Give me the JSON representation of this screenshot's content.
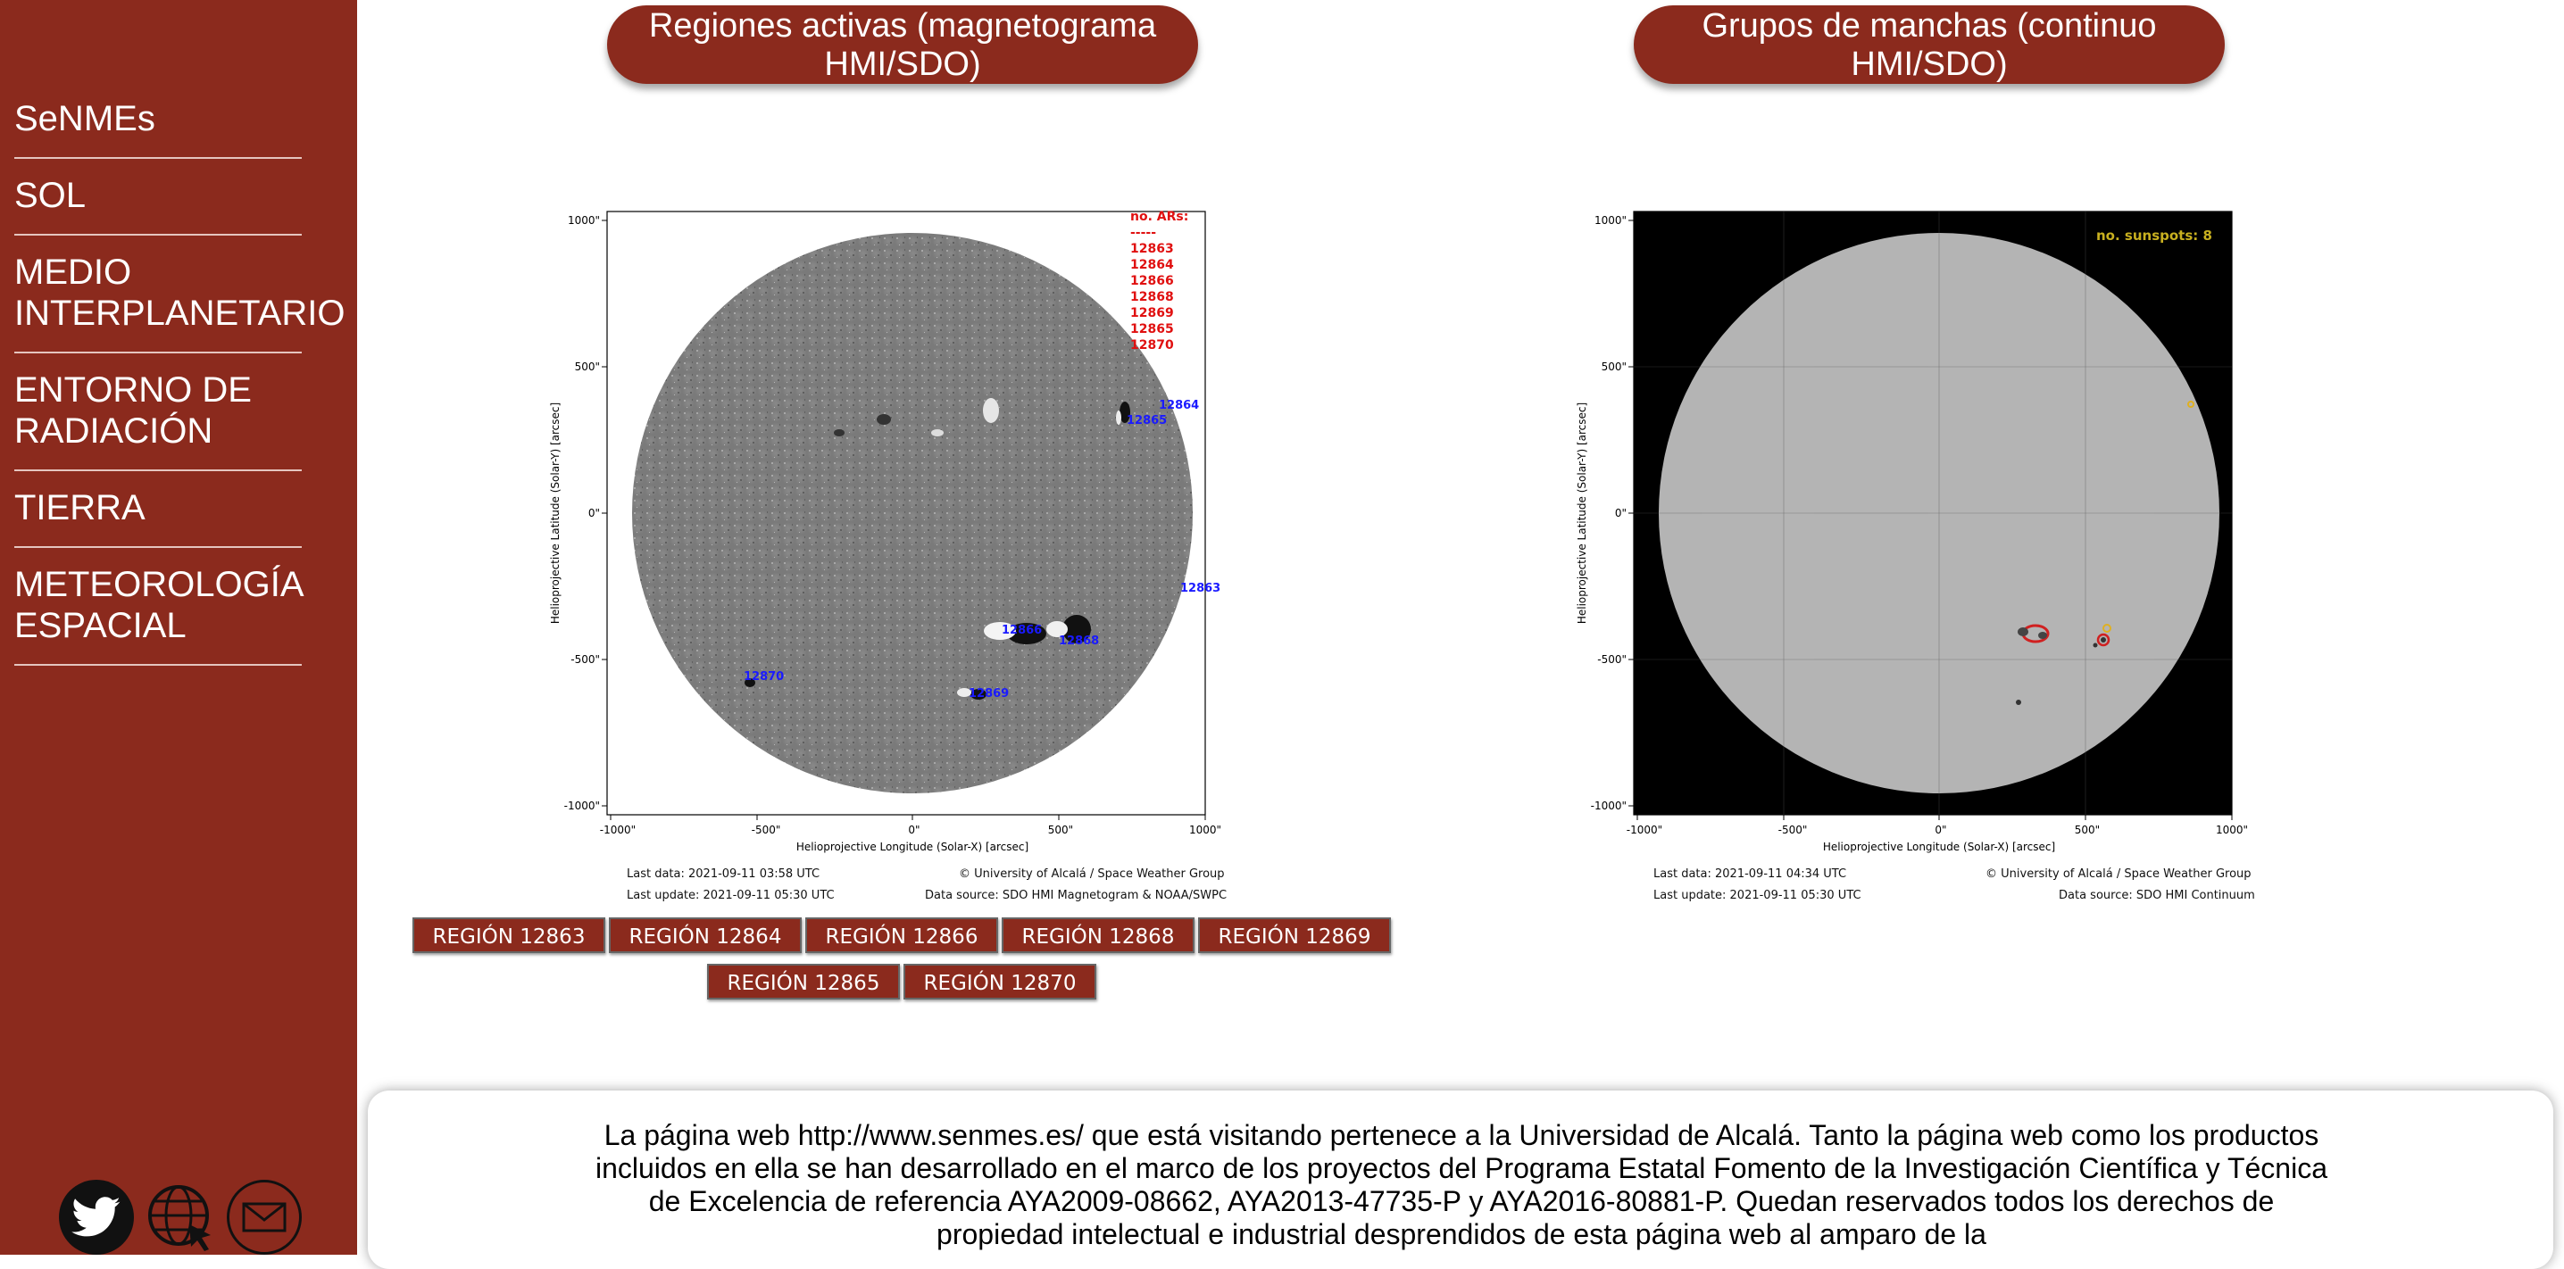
{
  "sidebar": {
    "items": [
      {
        "label": "SeNMEs"
      },
      {
        "label": "SOL"
      },
      {
        "label": "MEDIO INTERPLANETARIO"
      },
      {
        "label": "ENTORNO DE RADIACIÓN"
      },
      {
        "label": "TIERRA"
      },
      {
        "label": "METEOROLOGÍA ESPACIAL"
      }
    ],
    "social_icons": [
      "twitter-icon",
      "globe-icon",
      "mail-icon"
    ]
  },
  "panels": {
    "left": {
      "title": "Regiones activas (magnetograma HMI/SDO)",
      "xlabel": "Helioprojective Longitude (Solar-X) [arcsec]",
      "ylabel": "Helioprojective Latitude (Solar-Y) [arcsec]",
      "xticks": [
        "-1000\"",
        "-500\"",
        "0\"",
        "500\"",
        "1000\""
      ],
      "yticks": [
        "1000\"",
        "500\"",
        "0\"",
        "-500\"",
        "-1000\""
      ],
      "legend_title": "no. ARs:",
      "legend_sep": "-----",
      "legend_items": [
        "12863",
        "12864",
        "12866",
        "12868",
        "12869",
        "12865",
        "12870"
      ],
      "region_labels": [
        "12864",
        "12865",
        "12863",
        "12866",
        "12868",
        "12870",
        "12869"
      ],
      "last_data": "Last data:     2021-09-11 03:58 UTC",
      "last_update": "Last update: 2021-09-11 05:30 UTC",
      "copyright": "© University of Alcalá / Space Weather Group",
      "source": "Data source: SDO HMI Magnetogram & NOAA/SWPC",
      "colors": {
        "labels_blue": "#1a1aff",
        "legend_red": "#e01010"
      }
    },
    "right": {
      "title": "Grupos de manchas (continuo HMI/SDO)",
      "xlabel": "Helioprojective Longitude (Solar-X) [arcsec]",
      "ylabel": "Helioprojective Latitude (Solar-Y) [arcsec]",
      "xticks": [
        "-1000\"",
        "-500\"",
        "0\"",
        "500\"",
        "1000\""
      ],
      "yticks": [
        "1000\"",
        "500\"",
        "0\"",
        "-500\"",
        "-1000\""
      ],
      "annotation": "no. sunspots: 8",
      "last_data": "Last data:     2021-09-11 04:34 UTC",
      "last_update": "Last update: 2021-09-11 05:30 UTC",
      "copyright": "© University of Alcalá / Space Weather Group",
      "source": "Data source: SDO HMI Continuum",
      "colors": {
        "annotation": "#c8b020"
      }
    }
  },
  "region_buttons": {
    "row1": [
      "REGIÓN 12863",
      "REGIÓN 12864",
      "REGIÓN 12866",
      "REGIÓN 12868",
      "REGIÓN 12869"
    ],
    "row2": [
      "REGIÓN 12865",
      "REGIÓN 12870"
    ]
  },
  "footer": {
    "text": "La página web http://www.senmes.es/ que está visitando pertenece a la Universidad de Alcalá. Tanto la página web como los productos incluidos en ella se han desarrollado en el marco de los proyectos del Programa Estatal Fomento de la Investigación Científica y Técnica de Excelencia de referencia AYA2009-08662, AYA2013-47735-P y AYA2016-80881-P. Quedan reservados todos los derechos de propiedad intelectual e industrial desprendidos de esta página web al amparo de la"
  },
  "colors": {
    "brand": "#8b2a1d",
    "white": "#ffffff"
  }
}
